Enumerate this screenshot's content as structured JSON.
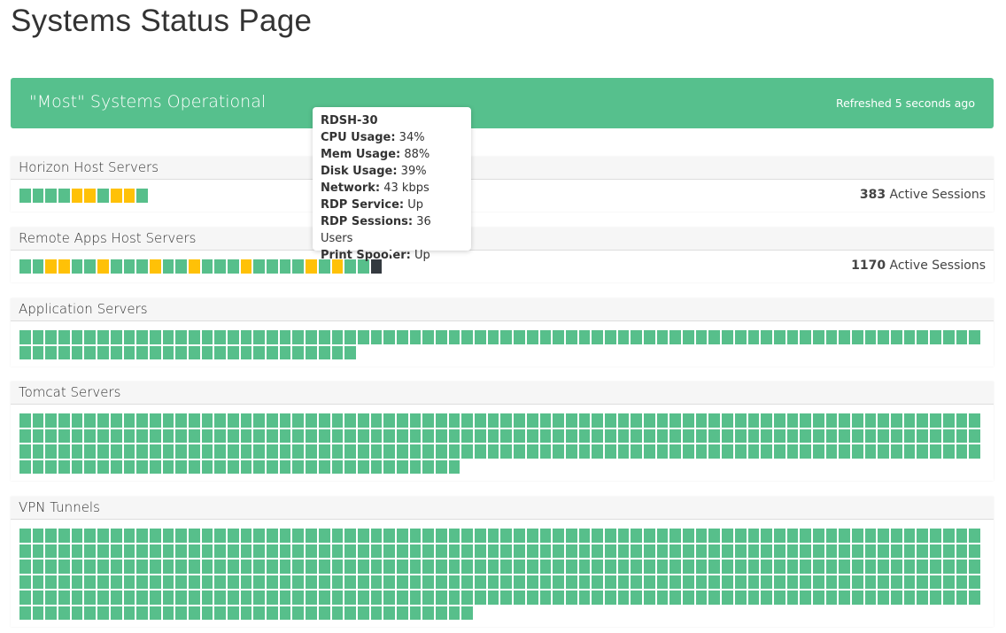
{
  "title": "Systems Status Page",
  "banner": {
    "status": "\"Most\" Systems Operational",
    "refreshed": "Refreshed 5 seconds ago",
    "color": "#56c08d"
  },
  "colors": {
    "up": "#57bf8b",
    "warning": "#ffc107",
    "selected": "#343a40"
  },
  "groups": [
    {
      "name": "Horizon Host Servers",
      "sessions_count": "383",
      "sessions_label": " Active Sessions",
      "statuses": [
        "up",
        "up",
        "up",
        "up",
        "warning",
        "warning",
        "up",
        "warning",
        "warning",
        "up"
      ]
    },
    {
      "name": "Remote Apps Host Servers",
      "sessions_count": "1170",
      "sessions_label": " Active Sessions",
      "statuses": [
        "up",
        "up",
        "warning",
        "warning",
        "up",
        "up",
        "warning",
        "up",
        "up",
        "up",
        "warning",
        "up",
        "up",
        "warning",
        "up",
        "up",
        "up",
        "warning",
        "up",
        "up",
        "up",
        "up",
        "warning",
        "up",
        "warning",
        "up",
        "up",
        "selected"
      ]
    },
    {
      "name": "Application Servers",
      "up_count": 100
    },
    {
      "name": "Tomcat Servers",
      "up_count": 256
    },
    {
      "name": "VPN Tunnels",
      "up_count": 405
    }
  ],
  "tooltip": {
    "host": "RDSH-30",
    "rows": [
      {
        "k": "CPU Usage:",
        "v": " 34%"
      },
      {
        "k": "Mem Usage:",
        "v": " 88%"
      },
      {
        "k": "Disk Usage:",
        "v": " 39%"
      },
      {
        "k": "Network:",
        "v": " 43 kbps"
      },
      {
        "k": "RDP Service:",
        "v": " Up"
      },
      {
        "k": "RDP Sessions:",
        "v": " 36 Users"
      },
      {
        "k": "Print Spooler:",
        "v": " Up"
      }
    ]
  }
}
